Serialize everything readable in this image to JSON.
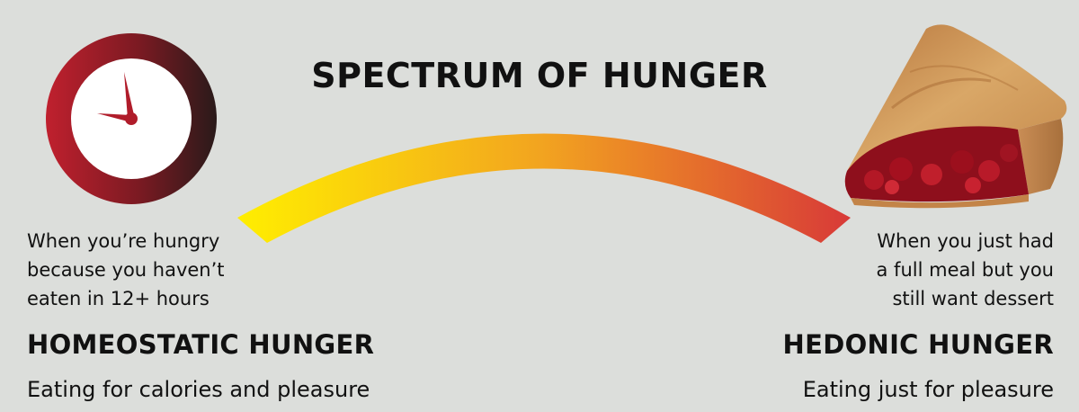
{
  "title": "SPECTRUM OF HUNGER",
  "gradient": {
    "start_color": "#ffee00",
    "mid_color": "#f2a320",
    "end_color": "#d83a38"
  },
  "left": {
    "icon": "clock-icon",
    "description": [
      "When you’re hungry",
      "because you haven’t",
      "eaten in 12+ hours"
    ],
    "name": "HOMEOSTATIC HUNGER",
    "subtitle": "Eating for calories and pleasure"
  },
  "right": {
    "icon": "cherry-pie-icon",
    "description": [
      "When you just had",
      "a full meal but you",
      "still want dessert"
    ],
    "name": "HEDONIC HUNGER",
    "subtitle": "Eating just for pleasure"
  }
}
